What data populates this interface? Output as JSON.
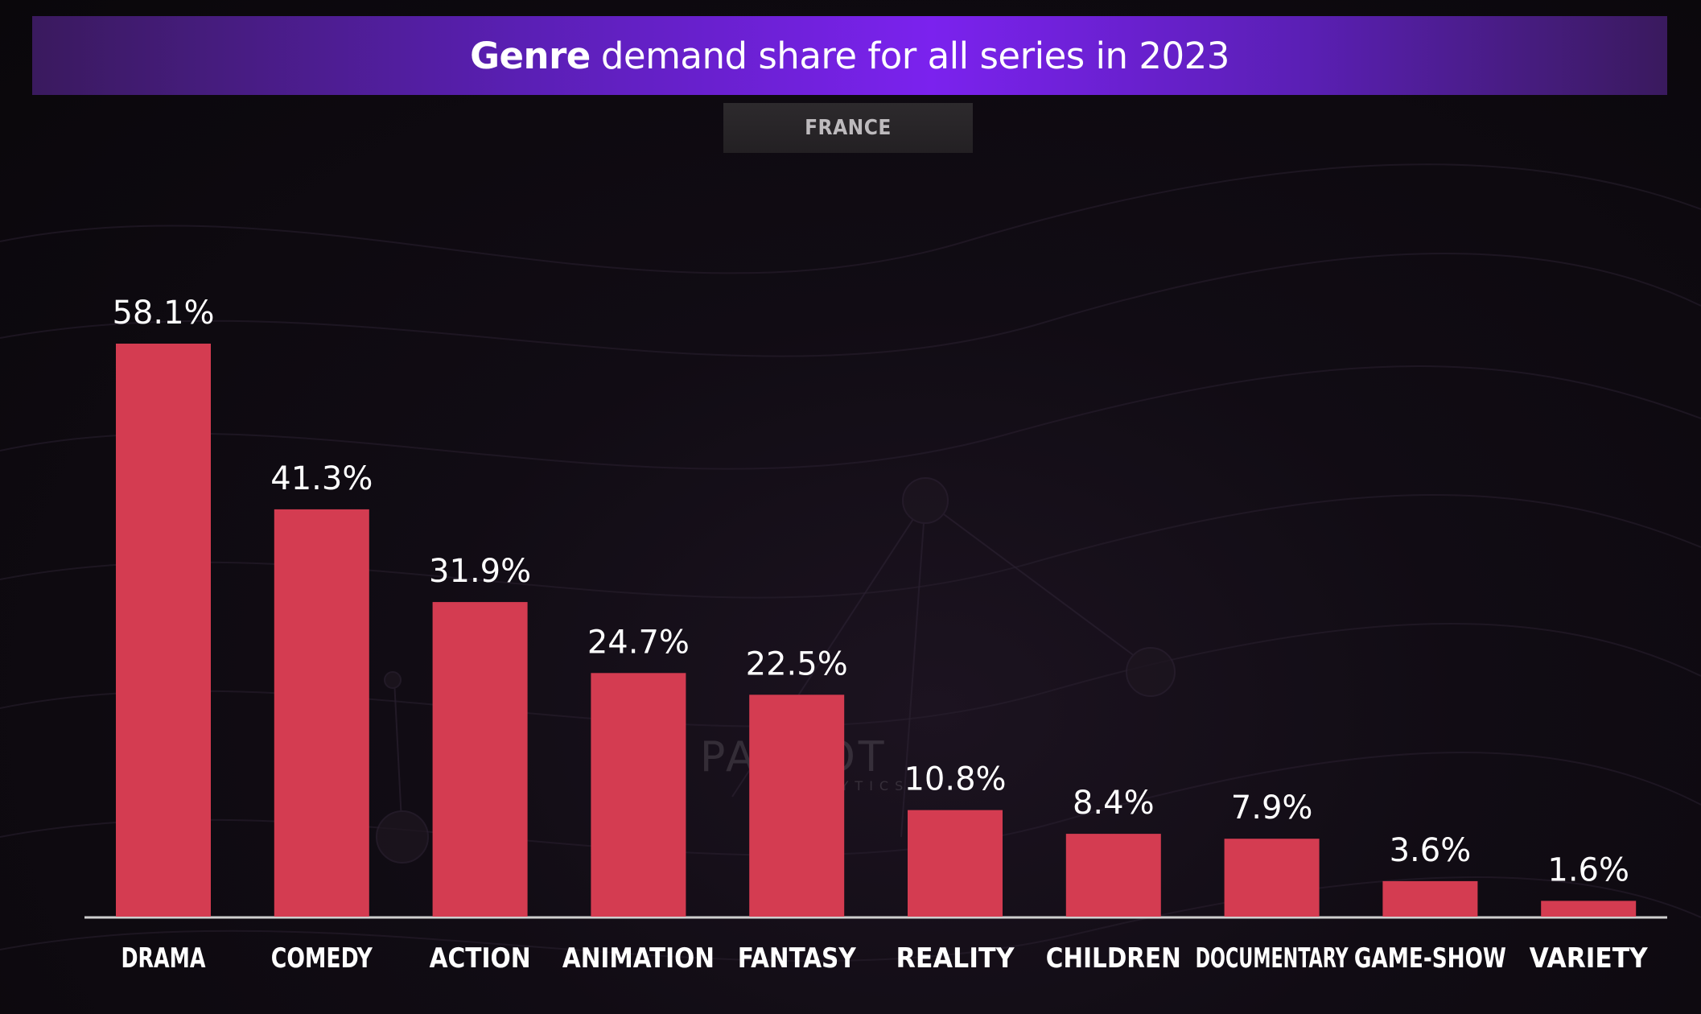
{
  "header": {
    "title_bold": "Genre",
    "title_rest": "demand share for all series in 2023",
    "region": "FRANCE"
  },
  "watermark": {
    "brand": "PARROT",
    "sub": "ANALYTICS"
  },
  "colors": {
    "bar": "#d43c51",
    "title_bar_accent": "#7b22ee",
    "background": "#0d0a0f"
  },
  "chart_data": {
    "type": "bar",
    "title": "Genre demand share for all series in 2023",
    "subtitle": "FRANCE",
    "xlabel": "",
    "ylabel": "",
    "ylim": [
      0,
      60
    ],
    "grid": false,
    "categories": [
      "DRAMA",
      "COMEDY",
      "ACTION",
      "ANIMATION",
      "FANTASY",
      "REALITY",
      "CHILDREN",
      "DOCUMENTARY",
      "GAME-SHOW",
      "VARIETY"
    ],
    "values": [
      58.1,
      41.3,
      31.9,
      24.7,
      22.5,
      10.8,
      8.4,
      7.9,
      3.6,
      1.6
    ],
    "value_labels": [
      "58.1%",
      "41.3%",
      "31.9%",
      "24.7%",
      "22.5%",
      "10.8%",
      "8.4%",
      "7.9%",
      "3.6%",
      "1.6%"
    ]
  }
}
